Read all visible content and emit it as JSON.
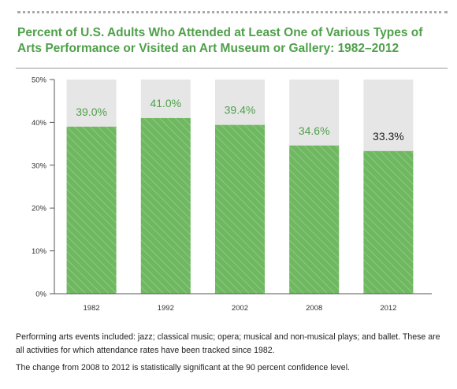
{
  "title": "Percent of U.S. Adults Who Attended at Least One of Various Types of Arts Performance or Visited an Art Museum or Gallery: 1982–2012",
  "colors": {
    "title": "#4fa04a",
    "bar": "#6fb861",
    "bar_hatch": "#8ccb80",
    "bar_background": "#e6e6e6",
    "label_green": "#4fa04a",
    "label_dark": "#222222"
  },
  "chart_data": {
    "type": "bar",
    "categories": [
      "1982",
      "1992",
      "2002",
      "2008",
      "2012"
    ],
    "values": [
      39.0,
      41.0,
      39.4,
      34.6,
      33.3
    ],
    "data_labels": [
      "39.0%",
      "41.0%",
      "39.4%",
      "34.6%",
      "33.3%"
    ],
    "y_ticks": [
      "0%",
      "10%",
      "20%",
      "30%",
      "40%",
      "50%"
    ],
    "y_tick_values": [
      0,
      10,
      20,
      30,
      40,
      50
    ],
    "ylim": [
      0,
      50
    ],
    "xlabel": "",
    "ylabel": "",
    "grid": false,
    "highlighted_label_index": 4
  },
  "notes": {
    "line1": "Performing arts events included: jazz; classical music; opera; musical and non-musical plays; and ballet. These are all activities for which attendance rates have been tracked since 1982.",
    "line2": "The change from 2008 to 2012 is statistically significant at the 90 percent confidence level."
  }
}
